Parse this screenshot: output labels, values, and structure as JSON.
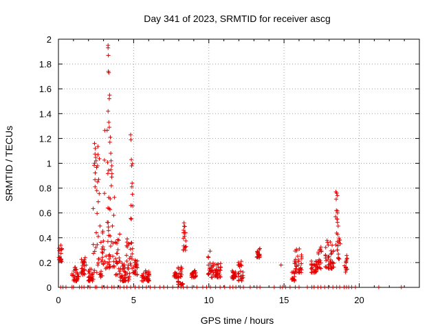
{
  "chart_data": {
    "type": "scatter",
    "title": "Day 341 of 2023, SRMTID for receiver ascg",
    "xlabel": "GPS time / hours",
    "ylabel": "SRMTID / TECUs",
    "xlim": [
      0,
      24
    ],
    "ylim": [
      0,
      2
    ],
    "xticks": [
      0,
      5,
      10,
      15,
      20
    ],
    "xtick_labels": [
      "0",
      "5",
      "10",
      "15",
      "20"
    ],
    "yticks": [
      0,
      0.2,
      0.4,
      0.6,
      0.8,
      1,
      1.2,
      1.4,
      1.6,
      1.8,
      2
    ],
    "ytick_labels": [
      "0",
      "0.2",
      "0.4",
      "0.6",
      "0.8",
      "1",
      "1.2",
      "1.4",
      "1.6",
      "1.8",
      "2"
    ],
    "grid": true,
    "marker": "+",
    "series": [
      {
        "name": "SRMTID",
        "color": "#e00000",
        "clusters": [
          {
            "x": [
              0.0,
              0.25
            ],
            "y": [
              0.2,
              0.34
            ]
          },
          {
            "x": [
              0.9,
              1.35
            ],
            "y": [
              0.05,
              0.17
            ]
          },
          {
            "x": [
              1.5,
              1.85
            ],
            "y": [
              0.1,
              0.24
            ]
          },
          {
            "x": [
              1.95,
              2.35
            ],
            "y": [
              0.05,
              0.15
            ]
          },
          {
            "x": [
              2.3,
              2.75
            ],
            "y": [
              0.1,
              1.15
            ]
          },
          {
            "x": [
              2.75,
              3.05
            ],
            "y": [
              0.08,
              0.5
            ]
          },
          {
            "x": [
              3.05,
              3.35
            ],
            "y": [
              0.15,
              1.3
            ]
          },
          {
            "x": [
              3.35,
              3.75
            ],
            "y": [
              0.15,
              1.0
            ]
          },
          {
            "x": [
              3.75,
              4.1
            ],
            "y": [
              0.1,
              0.45
            ]
          },
          {
            "x": [
              4.1,
              4.5
            ],
            "y": [
              0.05,
              0.2
            ]
          },
          {
            "x": [
              4.5,
              4.75
            ],
            "y": [
              0.05,
              0.45
            ]
          },
          {
            "x": [
              4.75,
              4.95
            ],
            "y": [
              0.15,
              1.0
            ]
          },
          {
            "x": [
              4.95,
              5.25
            ],
            "y": [
              0.1,
              0.22
            ]
          },
          {
            "x": [
              5.5,
              6.05
            ],
            "y": [
              0.05,
              0.14
            ]
          },
          {
            "x": [
              7.7,
              7.95
            ],
            "y": [
              0.08,
              0.13
            ]
          },
          {
            "x": [
              7.95,
              8.3
            ],
            "y": [
              0.02,
              0.18
            ]
          },
          {
            "x": [
              8.3,
              8.5
            ],
            "y": [
              0.3,
              0.53
            ]
          },
          {
            "x": [
              8.8,
              9.15
            ],
            "y": [
              0.08,
              0.14
            ]
          },
          {
            "x": [
              9.95,
              10.15
            ],
            "y": [
              0.1,
              0.32
            ]
          },
          {
            "x": [
              10.15,
              10.8
            ],
            "y": [
              0.08,
              0.2
            ]
          },
          {
            "x": [
              11.5,
              11.8
            ],
            "y": [
              0.07,
              0.14
            ]
          },
          {
            "x": [
              11.95,
              12.3
            ],
            "y": [
              0.05,
              0.22
            ]
          },
          {
            "x": [
              13.15,
              13.4
            ],
            "y": [
              0.24,
              0.32
            ]
          },
          {
            "x": [
              15.5,
              15.7
            ],
            "y": [
              0.05,
              0.14
            ]
          },
          {
            "x": [
              15.7,
              16.2
            ],
            "y": [
              0.12,
              0.32
            ]
          },
          {
            "x": [
              16.8,
              17.2
            ],
            "y": [
              0.12,
              0.22
            ]
          },
          {
            "x": [
              17.2,
              17.5
            ],
            "y": [
              0.15,
              0.33
            ]
          },
          {
            "x": [
              17.7,
              18.3
            ],
            "y": [
              0.15,
              0.38
            ]
          },
          {
            "x": [
              18.4,
              18.6
            ],
            "y": [
              0.3,
              0.78
            ]
          },
          {
            "x": [
              18.6,
              18.75
            ],
            "y": [
              0.2,
              0.45
            ]
          },
          {
            "x": [
              19.0,
              19.2
            ],
            "y": [
              0.12,
              0.28
            ]
          }
        ],
        "points": [
          [
            3.3,
            1.95
          ],
          [
            3.3,
            1.93
          ],
          [
            3.32,
            1.87
          ],
          [
            3.32,
            1.74
          ],
          [
            3.35,
            1.73
          ],
          [
            3.4,
            1.55
          ],
          [
            3.38,
            1.52
          ],
          [
            3.3,
            1.42
          ],
          [
            3.35,
            1.33
          ],
          [
            3.38,
            1.29
          ],
          [
            3.45,
            1.21
          ],
          [
            3.42,
            1.17
          ],
          [
            3.48,
            1.08
          ],
          [
            3.5,
            1.02
          ],
          [
            3.55,
            0.98
          ],
          [
            2.4,
            1.16
          ],
          [
            2.45,
            1.12
          ],
          [
            2.5,
            1.02
          ],
          [
            2.6,
            0.85
          ],
          [
            2.55,
            0.78
          ],
          [
            4.8,
            1.23
          ],
          [
            4.82,
            1.19
          ],
          [
            4.85,
            1.03
          ],
          [
            4.87,
            0.98
          ],
          [
            4.9,
            0.84
          ],
          [
            4.92,
            0.75
          ],
          [
            4.82,
            0.66
          ],
          [
            4.85,
            0.55
          ],
          [
            18.45,
            0.77
          ],
          [
            18.5,
            0.76
          ],
          [
            18.55,
            0.74
          ],
          [
            18.48,
            0.62
          ],
          [
            18.52,
            0.55
          ],
          [
            8.35,
            0.52
          ],
          [
            8.4,
            0.49
          ],
          [
            8.45,
            0.44
          ],
          [
            4.4,
            0.13
          ],
          [
            4.45,
            0.12
          ],
          [
            14.8,
            0.18
          ]
        ],
        "zero_points": [
          0.15,
          0.3,
          0.5,
          0.9,
          1.0,
          1.4,
          1.55,
          1.7,
          1.95,
          2.1,
          2.45,
          2.55,
          2.9,
          3.05,
          3.25,
          3.55,
          3.7,
          3.95,
          4.1,
          4.35,
          4.55,
          4.8,
          5.1,
          5.35,
          5.6,
          5.85,
          6.1,
          6.4,
          6.75,
          7.0,
          7.25,
          7.6,
          7.95,
          8.15,
          8.3,
          8.55,
          8.9,
          9.2,
          9.6,
          9.85,
          10.1,
          10.45,
          10.75,
          11.05,
          11.4,
          11.6,
          11.8,
          12.1,
          12.3,
          12.75,
          13.2,
          13.4,
          14.35,
          14.75,
          14.9,
          15.1,
          15.4,
          15.75,
          16.0,
          16.55,
          16.85,
          17.0,
          17.25,
          17.45,
          17.7,
          17.95,
          18.25,
          18.5,
          18.7,
          19.0,
          19.15,
          19.3,
          19.5,
          19.75,
          21.3,
          22.8
        ]
      }
    ]
  }
}
